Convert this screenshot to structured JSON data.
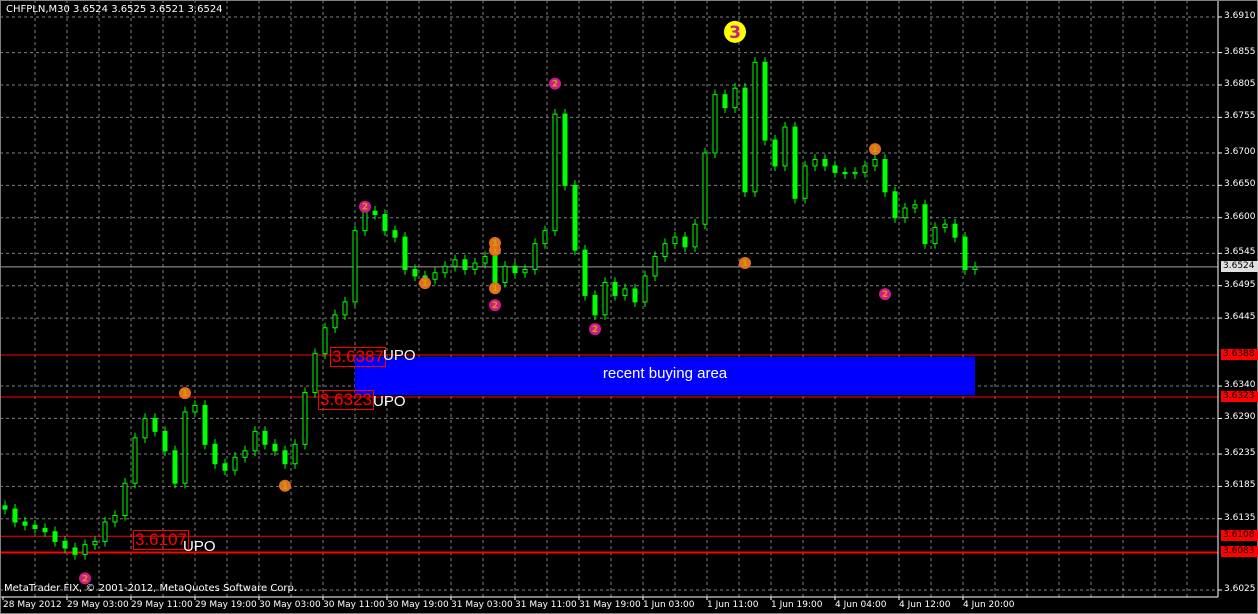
{
  "header": {
    "title": "CHFPLN,M30  3.6524 3.6525 3.6521 3.6524"
  },
  "footer": {
    "copyright": "MetaTrader FIX, © 2001-2012, MetaQuotes Software Corp."
  },
  "colors": {
    "background": "#000000",
    "candle": "#00ff00",
    "grid": "#808080",
    "level_line": "#ff0000",
    "buy_area": "#0000ff",
    "marker_1": "#e07020",
    "marker_2": "#d01890",
    "marker_3": "#ffff00"
  },
  "annotations": {
    "buy_area_label": "recent buying area",
    "upo": [
      {
        "price_label": "3.6387",
        "tag": "UPO"
      },
      {
        "price_label": "3.6323",
        "tag": "UPO"
      },
      {
        "price_label": "3.6107",
        "tag": "UPO"
      }
    ]
  },
  "chart_data": {
    "type": "candlestick",
    "symbol": "CHFPLN",
    "timeframe": "M30",
    "ylim": [
      3.6025,
      3.691
    ],
    "grid": true,
    "price_ticks": [
      "3.6910",
      "3.6855",
      "3.6805",
      "3.6755",
      "3.6700",
      "3.6650",
      "3.6600",
      "3.6545",
      "3.6495",
      "3.6445",
      "3.6340",
      "3.6290",
      "3.6235",
      "3.6185",
      "3.6135",
      "3.6025"
    ],
    "time_ticks": [
      "28 May 2012",
      "29 May 03:00",
      "29 May 11:00",
      "29 May 19:00",
      "30 May 03:00",
      "30 May 11:00",
      "30 May 19:00",
      "31 May 03:00",
      "31 May 11:00",
      "31 May 19:00",
      "1 Jun 03:00",
      "1 Jun 11:00",
      "1 Jun 19:00",
      "4 Jun 04:00",
      "4 Jun 12:00",
      "4 Jun 20:00"
    ],
    "current_price": "3.6524",
    "levels": [
      {
        "price": "3.6388",
        "style": "thin"
      },
      {
        "price": "3.6323",
        "style": "thin"
      },
      {
        "price": "3.6108",
        "style": "thin"
      },
      {
        "price": "3.6083",
        "style": "thick"
      }
    ],
    "buy_area": {
      "from": 3.6328,
      "to": 3.6388
    },
    "closes": [
      3.615,
      3.613,
      3.6125,
      3.612,
      3.6115,
      3.61,
      3.609,
      3.608,
      3.6095,
      3.61,
      3.613,
      3.614,
      3.619,
      3.626,
      3.629,
      3.627,
      3.624,
      3.619,
      3.63,
      3.631,
      3.625,
      3.622,
      3.621,
      3.623,
      3.624,
      3.627,
      3.625,
      3.624,
      3.622,
      3.625,
      3.633,
      3.639,
      3.643,
      3.645,
      3.647,
      3.658,
      3.661,
      3.6605,
      3.658,
      3.657,
      3.652,
      3.651,
      3.6505,
      3.6515,
      3.6525,
      3.6535,
      3.652,
      3.653,
      3.654,
      3.65,
      3.6525,
      3.6515,
      3.652,
      3.656,
      3.658,
      3.676,
      3.665,
      3.655,
      3.648,
      3.645,
      3.65,
      3.648,
      3.649,
      3.647,
      3.651,
      3.654,
      3.656,
      3.657,
      3.6555,
      3.659,
      3.67,
      3.679,
      3.677,
      3.68,
      3.664,
      3.684,
      3.672,
      3.668,
      3.674,
      3.663,
      3.668,
      3.669,
      3.668,
      3.667,
      3.6668,
      3.667,
      3.668,
      3.669,
      3.664,
      3.66,
      3.6615,
      3.662,
      3.656,
      3.6585,
      3.659,
      3.657,
      3.652,
      3.6524
    ],
    "markers": [
      {
        "label": "2",
        "candle": 8,
        "price": 3.6043,
        "kind": "marker_2"
      },
      {
        "label": "1",
        "candle": 18,
        "price": 3.6329,
        "kind": "marker_1"
      },
      {
        "label": "1",
        "candle": 28,
        "price": 3.6186,
        "kind": "marker_1"
      },
      {
        "label": "2",
        "candle": 36,
        "price": 3.6617,
        "kind": "marker_2"
      },
      {
        "label": "1",
        "candle": 42,
        "price": 3.6499,
        "kind": "marker_1"
      },
      {
        "label": "1",
        "candle": 49,
        "price": 3.655,
        "kind": "marker_1"
      },
      {
        "label": "1",
        "candle": 49,
        "price": 3.6561,
        "kind": "marker_1"
      },
      {
        "label": "1",
        "candle": 49,
        "price": 3.6491,
        "kind": "marker_1"
      },
      {
        "label": "2",
        "candle": 49,
        "price": 3.6465,
        "kind": "marker_2"
      },
      {
        "label": "2",
        "candle": 55,
        "price": 3.6807,
        "kind": "marker_2"
      },
      {
        "label": "2",
        "candle": 59,
        "price": 3.6428,
        "kind": "marker_2"
      },
      {
        "label": "3",
        "candle": 73,
        "price": 3.6887,
        "kind": "marker_3"
      },
      {
        "label": "1",
        "candle": 74,
        "price": 3.653,
        "kind": "marker_1"
      },
      {
        "label": "1",
        "candle": 87,
        "price": 3.6706,
        "kind": "marker_1"
      },
      {
        "label": "2",
        "candle": 88,
        "price": 3.6482,
        "kind": "marker_2"
      }
    ]
  }
}
